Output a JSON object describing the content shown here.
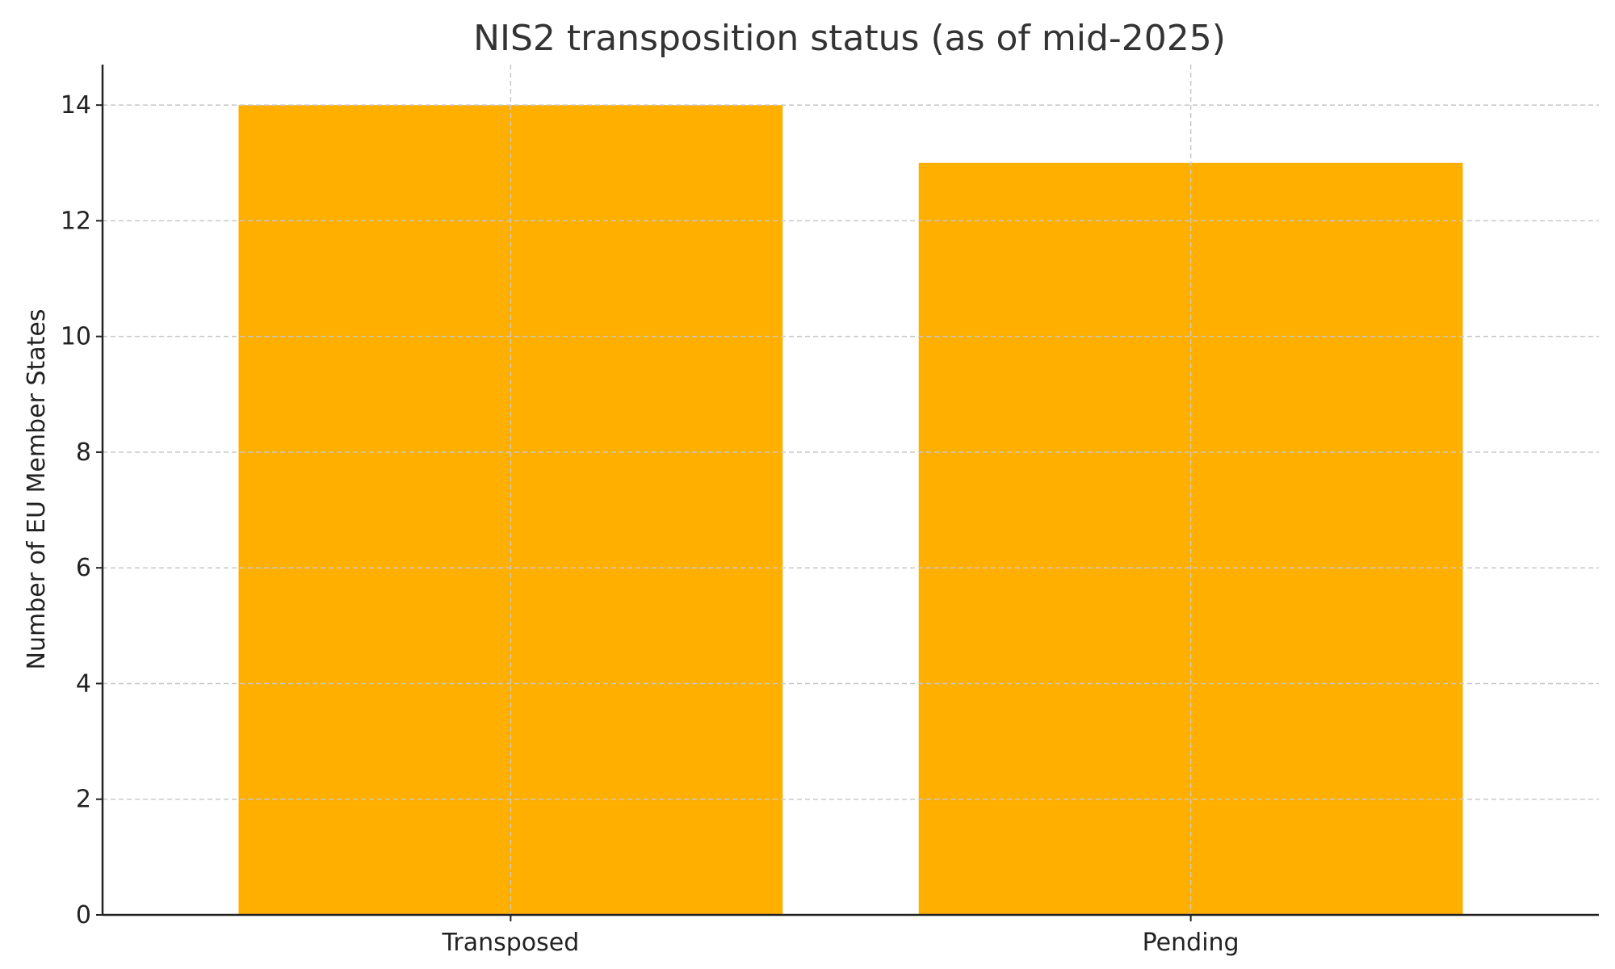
{
  "chart_data": {
    "type": "bar",
    "title": "NIS2 transposition status (as of mid-2025)",
    "xlabel": "",
    "ylabel": "Number of EU Member States",
    "categories": [
      "Transposed",
      "Pending"
    ],
    "values": [
      14,
      13
    ],
    "ylim": [
      0,
      14.7
    ],
    "yticks": [
      0,
      2,
      4,
      6,
      8,
      10,
      12,
      14
    ],
    "grid": true,
    "colors": {
      "bar": "#FFAF00"
    }
  }
}
